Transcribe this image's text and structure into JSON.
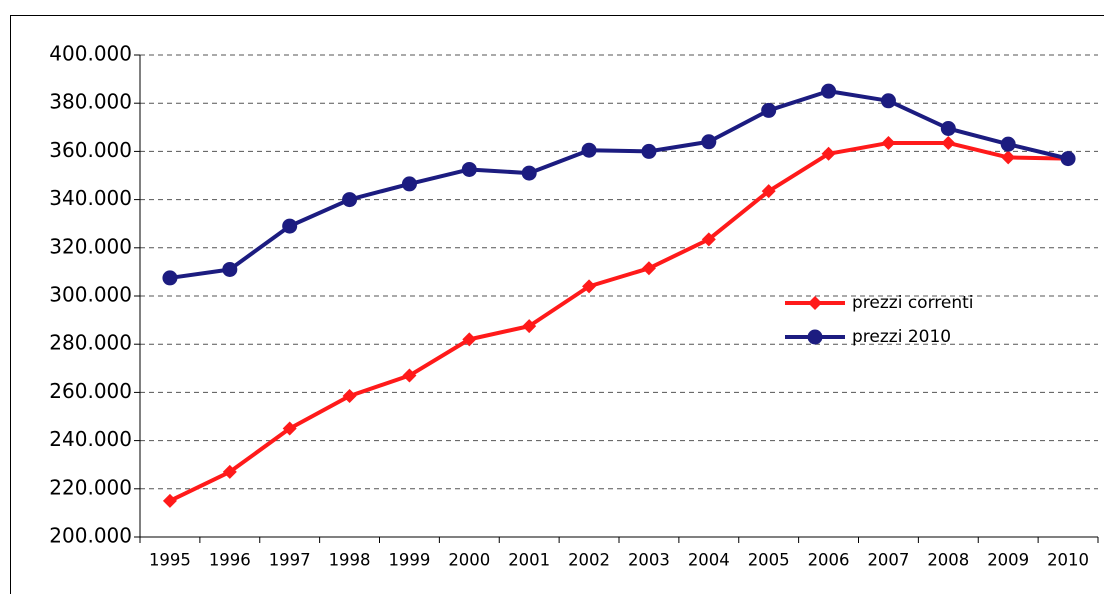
{
  "chart_data": {
    "type": "line",
    "categories": [
      "1995",
      "1996",
      "1997",
      "1998",
      "1999",
      "2000",
      "2001",
      "2002",
      "2003",
      "2004",
      "2005",
      "2006",
      "2007",
      "2008",
      "2009",
      "2010"
    ],
    "series": [
      {
        "name": "prezzi correnti",
        "color": "#ff1a1a",
        "marker": "diamond",
        "values": [
          215000,
          227000,
          245000,
          258500,
          267000,
          282000,
          287500,
          304000,
          311500,
          323500,
          343500,
          359000,
          363500,
          363500,
          357500,
          357000
        ]
      },
      {
        "name": "prezzi 2010",
        "color": "#1c1c80",
        "marker": "circle",
        "values": [
          307500,
          311000,
          329000,
          340000,
          346500,
          352500,
          351000,
          360500,
          360000,
          364000,
          377000,
          385000,
          381000,
          369500,
          363000,
          357000
        ]
      }
    ],
    "ylim": [
      200000,
      400000
    ],
    "yticks": [
      {
        "value": 200000,
        "label": "200.000"
      },
      {
        "value": 220000,
        "label": "220.000"
      },
      {
        "value": 240000,
        "label": "240.000"
      },
      {
        "value": 260000,
        "label": "260.000"
      },
      {
        "value": 280000,
        "label": "280.000"
      },
      {
        "value": 300000,
        "label": "300.000"
      },
      {
        "value": 320000,
        "label": "320.000"
      },
      {
        "value": 340000,
        "label": "340.000"
      },
      {
        "value": 360000,
        "label": "360.000"
      },
      {
        "value": 380000,
        "label": "380.000"
      },
      {
        "value": 400000,
        "label": "400.000"
      }
    ],
    "grid": true,
    "legend": "right"
  }
}
